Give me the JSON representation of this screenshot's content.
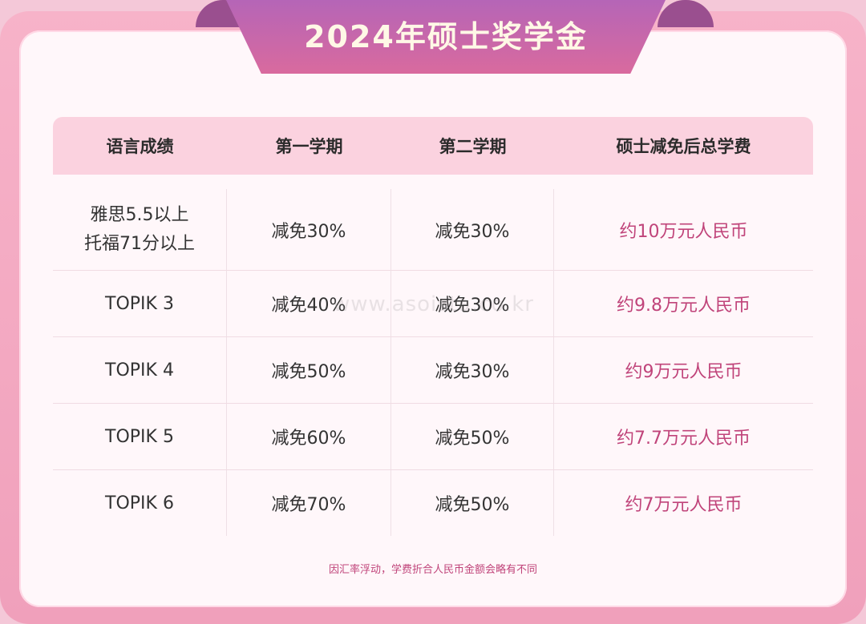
{
  "title": "2024年硕士奖学金",
  "table": {
    "headers": [
      "语言成绩",
      "第一学期",
      "第二学期",
      "硕士减免后总学费"
    ],
    "rows": [
      {
        "score": "雅思5.5以上\n托福71分以上",
        "sem1": "减免30%",
        "sem2": "减免30%",
        "total": "约10万元人民币"
      },
      {
        "score": "TOPIK 3",
        "sem1": "减免40%",
        "sem2": "减免30%",
        "total": "约9.8万元人民币"
      },
      {
        "score": "TOPIK 4",
        "sem1": "减免50%",
        "sem2": "减免30%",
        "total": "约9万元人民币"
      },
      {
        "score": "TOPIK 5",
        "sem1": "减免60%",
        "sem2": "减免50%",
        "total": "约7.7万元人民币"
      },
      {
        "score": "TOPIK 6",
        "sem1": "减免70%",
        "sem2": "减免50%",
        "total": "约7万元人民币"
      }
    ]
  },
  "note": "因汇率浮动，学费折合人民币金额会略有不同",
  "watermark": "www.asoista.co.kr",
  "colors": {
    "accent": "#c0447a",
    "header_bg": "#fbd2df",
    "frame": "#f0a0bb"
  }
}
